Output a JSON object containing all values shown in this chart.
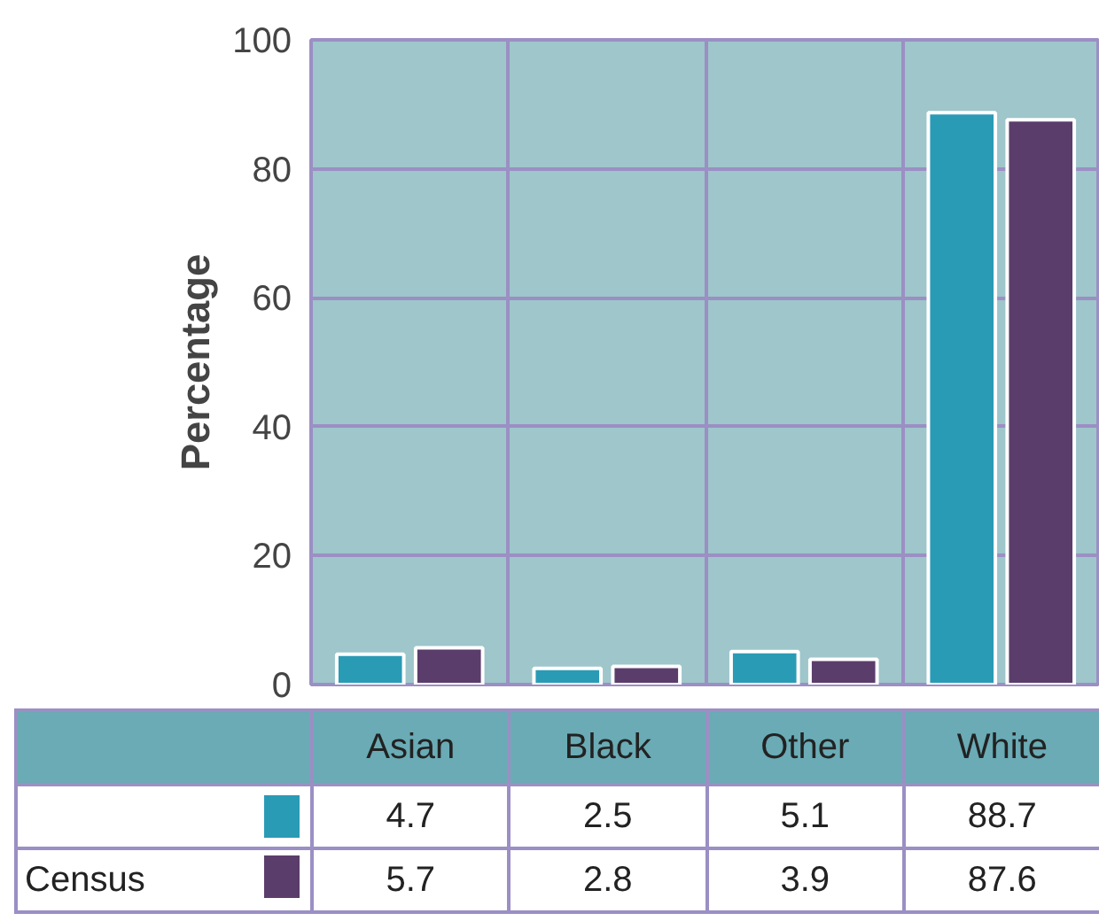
{
  "chart_data": {
    "type": "bar",
    "ylabel": "Percentage",
    "categories": [
      "Asian",
      "Black",
      "Other",
      "White"
    ],
    "series": [
      {
        "color": "#2a9bb5",
        "values": [
          4.7,
          2.5,
          5.1,
          88.7
        ]
      },
      {
        "name": "Census",
        "color": "#5b3d6b",
        "values": [
          5.7,
          2.8,
          3.9,
          87.6
        ]
      }
    ],
    "ylim": [
      0,
      100
    ],
    "yticks": [
      0,
      20,
      40,
      60,
      80,
      100
    ],
    "grid": true,
    "data_labels": true
  }
}
